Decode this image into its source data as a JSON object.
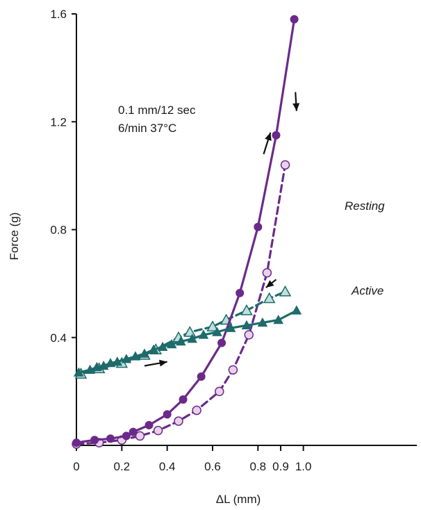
{
  "chart_data": {
    "type": "line",
    "title": "",
    "xlabel": "ΔL (mm)",
    "ylabel": "Force (g)",
    "xlim": [
      0,
      1.5
    ],
    "ylim": [
      0,
      1.6
    ],
    "x_ticks": [
      {
        "value": 0,
        "label": "0"
      },
      {
        "value": 0.2,
        "label": "0.2"
      },
      {
        "value": 0.4,
        "label": "0.4"
      },
      {
        "value": 0.6,
        "label": "0.6"
      },
      {
        "value": 0.8,
        "label": "0.8"
      },
      {
        "value": 0.9,
        "label": "0.9"
      },
      {
        "value": 1.0,
        "label": "1.0"
      }
    ],
    "y_ticks": [
      {
        "value": 0.4,
        "label": "0.4"
      },
      {
        "value": 0.8,
        "label": "0.8"
      },
      {
        "value": 1.2,
        "label": "1.2"
      },
      {
        "value": 1.6,
        "label": "1.6"
      }
    ],
    "annotation_lines": [
      "0.1 mm/12 sec",
      "6/min 37°C"
    ],
    "group_labels": {
      "resting": "Resting",
      "active": "Active"
    },
    "colors": {
      "resting_stroke": "#6b2a8a",
      "resting_fill_open": "#e8d2e8",
      "active_stroke": "#1f6b6b",
      "active_fill_open": "#bfe0dc",
      "axis": "#111111",
      "arrow": "#111111"
    },
    "series": [
      {
        "group": "resting",
        "direction": "stretch",
        "style": "solid",
        "marker": "filled-circle",
        "x": [
          0.0,
          0.08,
          0.15,
          0.22,
          0.25,
          0.32,
          0.4,
          0.47,
          0.55,
          0.64,
          0.72,
          0.8,
          0.88,
          0.96
        ],
        "y": [
          0.01,
          0.02,
          0.025,
          0.035,
          0.05,
          0.075,
          0.115,
          0.17,
          0.255,
          0.38,
          0.565,
          0.81,
          1.15,
          1.58
        ]
      },
      {
        "group": "resting",
        "direction": "release",
        "style": "dashed",
        "marker": "open-circle",
        "x": [
          0.0,
          0.1,
          0.2,
          0.28,
          0.36,
          0.45,
          0.53,
          0.63,
          0.69,
          0.76,
          0.84,
          0.92
        ],
        "y": [
          0.005,
          0.01,
          0.02,
          0.035,
          0.055,
          0.09,
          0.13,
          0.2,
          0.28,
          0.41,
          0.64,
          1.04
        ]
      },
      {
        "group": "active",
        "direction": "stretch",
        "style": "solid",
        "marker": "filled-triangle",
        "x": [
          0.01,
          0.06,
          0.09,
          0.12,
          0.15,
          0.18,
          0.22,
          0.26,
          0.3,
          0.34,
          0.38,
          0.42,
          0.46,
          0.51,
          0.56,
          0.62,
          0.68,
          0.75,
          0.82,
          0.89,
          0.97
        ],
        "y": [
          0.27,
          0.28,
          0.29,
          0.295,
          0.305,
          0.31,
          0.32,
          0.33,
          0.34,
          0.355,
          0.365,
          0.375,
          0.385,
          0.395,
          0.41,
          0.42,
          0.435,
          0.445,
          0.455,
          0.465,
          0.5
        ]
      },
      {
        "group": "active",
        "direction": "release",
        "style": "dashed",
        "marker": "open-triangle",
        "x": [
          0.02,
          0.1,
          0.2,
          0.3,
          0.35,
          0.45,
          0.5,
          0.6,
          0.66,
          0.75,
          0.85,
          0.92
        ],
        "y": [
          0.265,
          0.285,
          0.305,
          0.335,
          0.355,
          0.4,
          0.42,
          0.44,
          0.465,
          0.5,
          0.545,
          0.57
        ]
      }
    ],
    "direction_arrows": [
      {
        "x1": 0.825,
        "y1": 1.08,
        "x2": 0.855,
        "y2": 1.16
      },
      {
        "x1": 0.965,
        "y1": 1.31,
        "x2": 0.97,
        "y2": 1.24
      },
      {
        "x1": 0.88,
        "y1": 0.615,
        "x2": 0.835,
        "y2": 0.585
      },
      {
        "x1": 0.3,
        "y1": 0.295,
        "x2": 0.4,
        "y2": 0.31
      }
    ]
  }
}
